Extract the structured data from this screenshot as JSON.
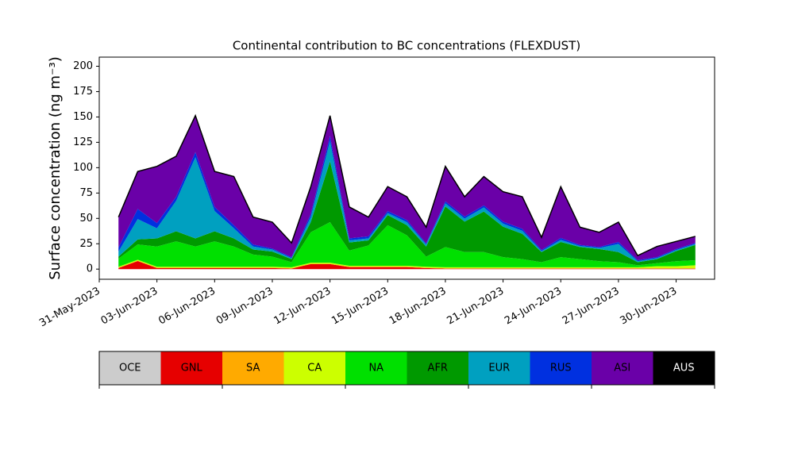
{
  "chart_data": {
    "type": "stacked_area",
    "title": "Continental contribution to BC concentrations (FLEXDUST)",
    "y_label": "Surface concentration (ng m⁻³)",
    "x": [
      "2023-06-01",
      "2023-06-02",
      "2023-06-03",
      "2023-06-04",
      "2023-06-05",
      "2023-06-06",
      "2023-06-07",
      "2023-06-08",
      "2023-06-09",
      "2023-06-10",
      "2023-06-11",
      "2023-06-12",
      "2023-06-13",
      "2023-06-14",
      "2023-06-15",
      "2023-06-16",
      "2023-06-17",
      "2023-06-18",
      "2023-06-19",
      "2023-06-20",
      "2023-06-21",
      "2023-06-22",
      "2023-06-23",
      "2023-06-24",
      "2023-06-25",
      "2023-06-26",
      "2023-06-27",
      "2023-06-28",
      "2023-06-29",
      "2023-06-30",
      "2023-07-01"
    ],
    "series": [
      {
        "name": "OCE",
        "color": "#cccccc",
        "values": [
          0,
          0,
          0,
          0,
          0,
          0,
          0,
          0,
          0,
          0,
          0,
          0,
          0,
          0,
          0,
          0,
          0,
          0,
          0,
          0,
          0,
          0,
          0,
          0,
          0,
          0,
          0,
          0,
          0,
          0,
          0
        ]
      },
      {
        "name": "GNL",
        "color": "#e60000",
        "values": [
          1,
          8,
          1,
          1,
          1,
          1,
          1,
          1,
          1,
          0.5,
          5,
          5,
          2,
          2,
          2,
          2,
          1,
          0.5,
          0.5,
          0.5,
          0.5,
          0.5,
          0.5,
          0.5,
          0.5,
          0.5,
          0.5,
          0.5,
          0.5,
          0.5,
          0.5
        ]
      },
      {
        "name": "SA",
        "color": "#ffaa00",
        "values": [
          0.3,
          0.3,
          0.3,
          0.3,
          0.3,
          0.3,
          0.3,
          0.3,
          0.3,
          0.3,
          0.3,
          0.3,
          0.3,
          0.3,
          0.3,
          0.3,
          0.3,
          0.3,
          0.3,
          0.3,
          0.3,
          0.3,
          0.3,
          0.3,
          0.3,
          0.3,
          0.3,
          0.3,
          0.3,
          0.3,
          0.3
        ]
      },
      {
        "name": "CA",
        "color": "#ccff00",
        "values": [
          1,
          1,
          1,
          1,
          1,
          1,
          1,
          1,
          1,
          1,
          1,
          1,
          1,
          1,
          1,
          1,
          1,
          1,
          1,
          1,
          1,
          1,
          1,
          1,
          1,
          1,
          1,
          1,
          2,
          2,
          3
        ]
      },
      {
        "name": "NA",
        "color": "#00e000",
        "values": [
          8,
          15,
          20,
          25,
          20,
          25,
          20,
          12,
          10,
          5,
          30,
          40,
          15,
          20,
          40,
          30,
          10,
          20,
          15,
          15,
          10,
          8,
          5,
          10,
          8,
          6,
          5,
          2,
          3,
          5,
          5
        ]
      },
      {
        "name": "AFR",
        "color": "#009900",
        "values": [
          2,
          5,
          8,
          10,
          8,
          10,
          8,
          5,
          5,
          3,
          10,
          60,
          8,
          5,
          10,
          10,
          10,
          40,
          30,
          40,
          30,
          25,
          10,
          15,
          12,
          12,
          10,
          3,
          4,
          10,
          15
        ]
      },
      {
        "name": "EUR",
        "color": "#00a0c0",
        "values": [
          5,
          20,
          10,
          30,
          80,
          20,
          10,
          3,
          2,
          1,
          5,
          20,
          2,
          2,
          2,
          3,
          2,
          3,
          3,
          4,
          3,
          3,
          1,
          2,
          1,
          1,
          8,
          1,
          1,
          1,
          1
        ]
      },
      {
        "name": "RUS",
        "color": "#0030e0",
        "values": [
          4,
          10,
          5,
          4,
          5,
          4,
          3,
          2,
          1,
          1,
          3,
          5,
          2,
          2,
          2,
          2,
          1,
          2,
          2,
          2,
          2,
          2,
          1,
          2,
          1,
          1,
          2,
          1,
          1,
          1,
          1
        ]
      },
      {
        "name": "ASI",
        "color": "#6a00a8",
        "values": [
          30,
          37,
          56,
          40,
          36,
          35,
          48,
          27,
          26,
          14,
          27,
          20,
          31,
          19,
          24,
          23,
          16,
          34.5,
          19.5,
          28.5,
          29.5,
          31.5,
          12.5,
          50.5,
          17.5,
          14.5,
          19.5,
          4.5,
          10.5,
          7.5,
          6.5
        ]
      },
      {
        "name": "AUS",
        "color": "#000000",
        "values": [
          0,
          0,
          0,
          0,
          0,
          0,
          0,
          0,
          0,
          0,
          0,
          0,
          0,
          0,
          0,
          0,
          0,
          0,
          0,
          0,
          0,
          0,
          0,
          0,
          0,
          0,
          0,
          0,
          0,
          0,
          0
        ]
      }
    ],
    "xlim": [
      "2023-05-31",
      "2023-07-02"
    ],
    "xticks": [
      {
        "value": "2023-05-31",
        "label": "31-May-2023"
      },
      {
        "value": "2023-06-03",
        "label": "03-Jun-2023"
      },
      {
        "value": "2023-06-06",
        "label": "06-Jun-2023"
      },
      {
        "value": "2023-06-09",
        "label": "09-Jun-2023"
      },
      {
        "value": "2023-06-12",
        "label": "12-Jun-2023"
      },
      {
        "value": "2023-06-15",
        "label": "15-Jun-2023"
      },
      {
        "value": "2023-06-18",
        "label": "18-Jun-2023"
      },
      {
        "value": "2023-06-21",
        "label": "21-Jun-2023"
      },
      {
        "value": "2023-06-24",
        "label": "24-Jun-2023"
      },
      {
        "value": "2023-06-27",
        "label": "27-Jun-2023"
      },
      {
        "value": "2023-06-30",
        "label": "30-Jun-2023"
      }
    ],
    "ylim": [
      -10,
      209
    ],
    "yticks": [
      0,
      25,
      50,
      75,
      100,
      125,
      150,
      175,
      200
    ]
  }
}
